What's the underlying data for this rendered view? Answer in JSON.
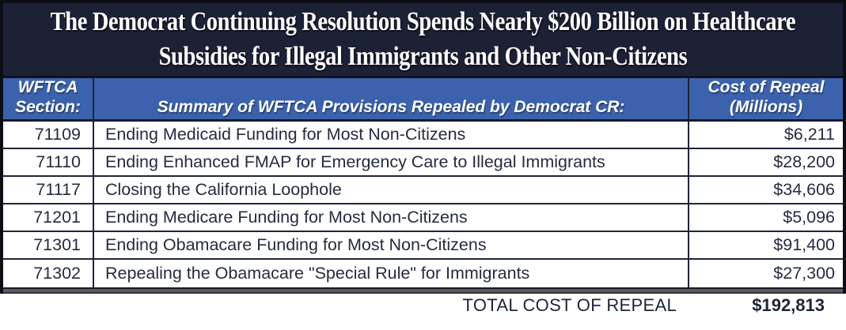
{
  "title": {
    "line1": "The Democrat Continuing Resolution Spends Nearly $200 Billion on Healthcare",
    "line2": "Subsidies for Illegal Immigrants and Other Non-Citizens"
  },
  "table": {
    "header": {
      "section_line1": "WFTCA",
      "section_line2": "Section:",
      "summary": "Summary of WFTCA Provisions Repealed by Democrat CR:",
      "cost_line1": "Cost of Repeal",
      "cost_line2": "(Millions)"
    },
    "rows": [
      {
        "section": "71109",
        "summary": "Ending Medicaid Funding for Most Non-Citizens",
        "cost": "$6,211"
      },
      {
        "section": "71110",
        "summary": "Ending Enhanced FMAP for Emergency Care to Illegal Immigrants",
        "cost": "$28,200"
      },
      {
        "section": "71117",
        "summary": "Closing the California Loophole",
        "cost": "$34,606"
      },
      {
        "section": "71201",
        "summary": "Ending Medicare Funding for Most Non-Citizens",
        "cost": "$5,096"
      },
      {
        "section": "71301",
        "summary": "Ending Obamacare Funding for Most Non-Citizens",
        "cost": "$91,400"
      },
      {
        "section": "71302",
        "summary": "Repealing the Obamacare \"Special Rule\" for Immigrants",
        "cost": "$27,300"
      }
    ],
    "total": {
      "label": "TOTAL COST OF REPEAL",
      "value": "$192,813"
    }
  },
  "colors": {
    "banner_navy": "#1c2136",
    "header_blue": "#3c62ad",
    "text_navy": "#262b3f",
    "border_dark": "#20243a",
    "outer_border": "#0d0d15"
  },
  "chart_data": {
    "type": "table",
    "title": "The Democrat Continuing Resolution Spends Nearly $200 Billion on Healthcare Subsidies for Illegal Immigrants and Other Non-Citizens",
    "columns": [
      "WFTCA Section:",
      "Summary of WFTCA Provisions Repealed by Democrat CR:",
      "Cost of Repeal (Millions)"
    ],
    "rows": [
      [
        "71109",
        "Ending Medicaid Funding for Most Non-Citizens",
        6211
      ],
      [
        "71110",
        "Ending Enhanced FMAP for Emergency Care to Illegal Immigrants",
        28200
      ],
      [
        "71117",
        "Closing the California Loophole",
        34606
      ],
      [
        "71201",
        "Ending Medicare Funding for Most Non-Citizens",
        5096
      ],
      [
        "71301",
        "Ending Obamacare Funding for Most Non-Citizens",
        91400
      ],
      [
        "71302",
        "Repealing the Obamacare \"Special Rule\" for Immigrants",
        27300
      ]
    ],
    "total_label": "TOTAL COST OF REPEAL",
    "total_value": 192813,
    "units": "millions of USD"
  }
}
